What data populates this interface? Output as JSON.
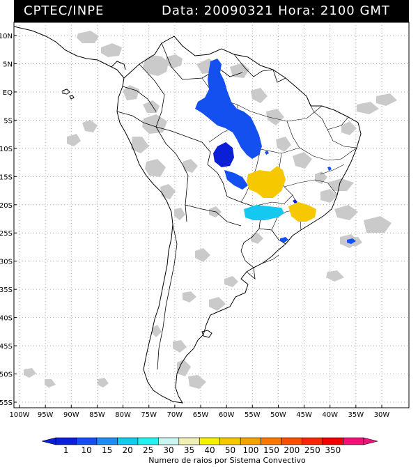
{
  "header": {
    "source": "CPTEC/INPE",
    "data_label": "Data:",
    "date": "20090321",
    "hora_label": "Hora:",
    "time": "2100 GMT"
  },
  "map": {
    "lat_labels": [
      "10N",
      "5N",
      "EQ",
      "5S",
      "10S",
      "15S",
      "20S",
      "25S",
      "30S",
      "35S",
      "40S",
      "45S",
      "50S",
      "55S"
    ],
    "lon_labels": [
      "100W",
      "95W",
      "90W",
      "85W",
      "80W",
      "75W",
      "70W",
      "65W",
      "60W",
      "55W",
      "50W",
      "45W",
      "40W",
      "35W",
      "30W"
    ],
    "grid": true,
    "background_layer": "cloud cover (gray)",
    "overlay": "convective systems colored by lightning count"
  },
  "legend": {
    "title": "Numero de raios por Sistema Convectivo",
    "values": [
      "1",
      "10",
      "15",
      "20",
      "25",
      "30",
      "35",
      "40",
      "50",
      "100",
      "150",
      "200",
      "250",
      "350"
    ],
    "colors": [
      "#0a1fd6",
      "#1450f0",
      "#1e8cf0",
      "#14c8f0",
      "#28f0f0",
      "#c8f5f0",
      "#f0f0b4",
      "#f5f000",
      "#f5c800",
      "#f5a000",
      "#f57800",
      "#f55000",
      "#f52800",
      "#f00000",
      "#f0147a"
    ]
  },
  "colors": {
    "cloud": "#c8c8c8",
    "coast": "#000000",
    "grid": "#9a9a9a"
  }
}
